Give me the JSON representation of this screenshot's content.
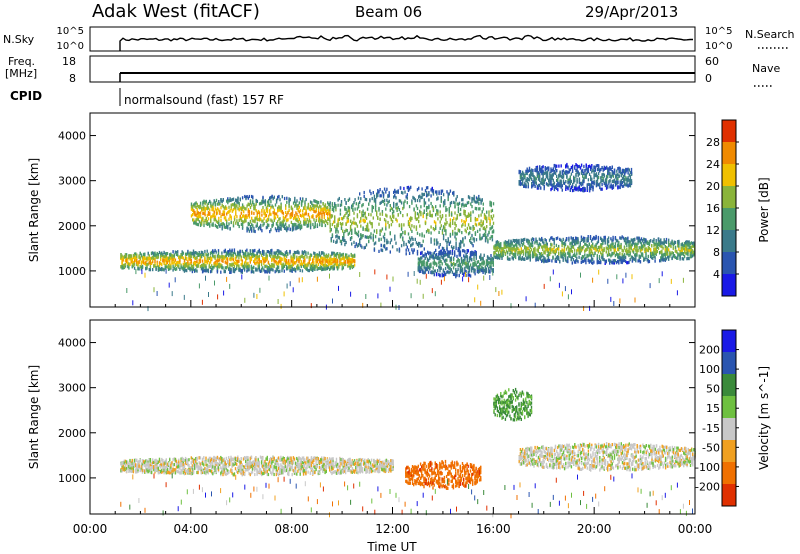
{
  "header": {
    "station": "Adak West (fitACF)",
    "beam": "Beam 06",
    "date": "29/Apr/2013"
  },
  "top_panels": {
    "nsky_label": "N.Sky",
    "nsearch_label": "N.Search",
    "noise_ticks": [
      "10^5",
      "10^0"
    ],
    "freq_label_line1": "Freq.",
    "freq_label_line2": "[MHz]",
    "freq_ticks": [
      "18",
      "8"
    ],
    "nave_label": "Nave",
    "nave_ticks": [
      "60",
      "0"
    ],
    "cpid_label": "CPID",
    "cpid_text": "normalsound (fast) 157 RF"
  },
  "chart_data": [
    {
      "type": "heatmap",
      "panel": "power",
      "ylabel": "Slant Range [km]",
      "xlabel": "",
      "ylim": [
        200,
        4500
      ],
      "yticks": [
        "1000",
        "2000",
        "3000",
        "4000"
      ],
      "colorbar_label": "Power [dB]",
      "colorbar_ticks": [
        "4",
        "8",
        "12",
        "16",
        "20",
        "24",
        "28"
      ],
      "colorbar_range": [
        0,
        32
      ],
      "colorbar_colors": [
        "#1a1ae6",
        "#2a55b0",
        "#3a7a8a",
        "#4a9a6a",
        "#8ab43a",
        "#f0c000",
        "#f08a00",
        "#e03000"
      ],
      "echo_bands": [
        {
          "t0": 1.2,
          "t1": 10.5,
          "range_km": [
            1000,
            1500
          ],
          "peak_db": 26
        },
        {
          "t0": 4.0,
          "t1": 9.5,
          "range_km": [
            1900,
            2700
          ],
          "peak_db": 26
        },
        {
          "t0": 9.5,
          "t1": 16.0,
          "range_km": [
            1400,
            2900
          ],
          "peak_db": 20
        },
        {
          "t0": 13.0,
          "t1": 16.0,
          "range_km": [
            900,
            1500
          ],
          "peak_db": 15
        },
        {
          "t0": 16.0,
          "t1": 24.0,
          "range_km": [
            1200,
            1800
          ],
          "peak_db": 20
        },
        {
          "t0": 17.0,
          "t1": 21.5,
          "range_km": [
            2800,
            3400
          ],
          "peak_db": 12
        }
      ]
    },
    {
      "type": "heatmap",
      "panel": "velocity",
      "ylabel": "Slant Range [km]",
      "xlabel": "Time UT",
      "ylim": [
        200,
        4500
      ],
      "yticks": [
        "1000",
        "2000",
        "3000",
        "4000"
      ],
      "xticks": [
        "00:00",
        "04:00",
        "08:00",
        "12:00",
        "16:00",
        "20:00",
        "00:00"
      ],
      "xlim_hours": [
        0,
        24
      ],
      "colorbar_label": "Velocity [m s^-1]",
      "colorbar_ticks": [
        "200",
        "100",
        "50",
        "15",
        "-15",
        "-50",
        "-100",
        "-200"
      ],
      "colorbar_colors": [
        "#1a1ae6",
        "#2a55b0",
        "#3a8a3a",
        "#6ec040",
        "#c8c8c8",
        "#f0a020",
        "#f07000",
        "#e03000"
      ],
      "echo_bands": [
        {
          "t0": 1.2,
          "t1": 12.0,
          "range_km": [
            1100,
            1500
          ],
          "velocity": 0
        },
        {
          "t0": 12.5,
          "t1": 15.5,
          "range_km": [
            800,
            1400
          ],
          "velocity": -80
        },
        {
          "t0": 16.0,
          "t1": 17.5,
          "range_km": [
            2300,
            3000
          ],
          "velocity": 40
        },
        {
          "t0": 17.0,
          "t1": 24.0,
          "range_km": [
            1200,
            1800
          ],
          "velocity": 0
        }
      ]
    }
  ]
}
